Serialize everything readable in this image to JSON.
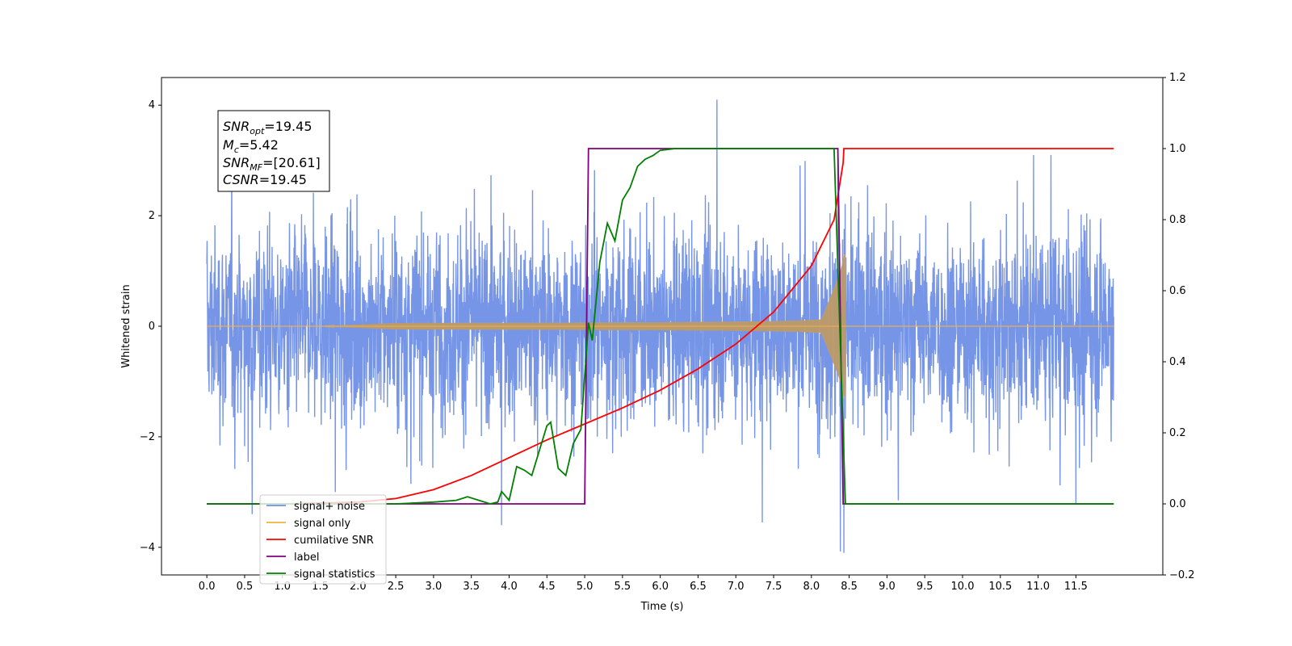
{
  "chart_data": {
    "type": "line",
    "title": "",
    "xlabel": "Time (s)",
    "ylabel": "Whitened strain",
    "xlim": [
      -0.6,
      12.65
    ],
    "ylim": [
      -4.5,
      4.5
    ],
    "y2lim": [
      -0.2,
      1.2
    ],
    "grid": false,
    "legend_position": "lower-left",
    "x_ticks": [
      "0.0",
      "0.5",
      "1.0",
      "1.5",
      "2.0",
      "2.5",
      "3.0",
      "3.5",
      "4.0",
      "4.5",
      "5.0",
      "5.5",
      "6.0",
      "6.5",
      "7.0",
      "7.5",
      "8.0",
      "8.5",
      "9.0",
      "9.5",
      "10.0",
      "10.5",
      "11.0",
      "11.5"
    ],
    "y_ticks": [
      "−4",
      "−2",
      "0",
      "2",
      "4"
    ],
    "y2_ticks": [
      "−0.2",
      "0.0",
      "0.2",
      "0.4",
      "0.6",
      "0.8",
      "1.0",
      "1.2"
    ],
    "annotation": {
      "snr_opt": {
        "symbol": "SNR",
        "sub": "opt",
        "value": "=19.45"
      },
      "mc": {
        "symbol": "M",
        "sub": "c",
        "value": "=5.42"
      },
      "snr_mf": {
        "symbol": "SNR",
        "sub": "MF",
        "value": "=[20.61]"
      },
      "csnr": {
        "symbol": "CSNR",
        "sub": "",
        "value": "=19.45"
      }
    },
    "series": [
      {
        "name": "signal+ noise",
        "axis": "left",
        "color": "#6f8fe6",
        "kind": "noise",
        "x_range": [
          0,
          12
        ],
        "noise_std": 0.85,
        "spike_times": [
          0.6,
          1.7,
          3.9,
          6.75,
          7.35,
          8.43,
          9.15,
          11.5
        ],
        "spike_values": [
          -3.4,
          -3.0,
          -3.6,
          4.1,
          -3.55,
          -4.1,
          -3.15,
          -3.2
        ]
      },
      {
        "name": "signal only",
        "axis": "left",
        "color": "#f5b041",
        "kind": "chirp",
        "start": 2.5,
        "merger": 8.43,
        "peak_amplitude": 1.3
      },
      {
        "name": "cumilative SNR",
        "axis": "right",
        "color": "#ff0000",
        "x": [
          0.0,
          1.0,
          2.0,
          2.5,
          3.0,
          3.5,
          4.0,
          4.5,
          5.0,
          5.5,
          6.0,
          6.5,
          7.0,
          7.5,
          8.0,
          8.3,
          8.42,
          8.43,
          12.0
        ],
        "y": [
          0.0,
          0.0,
          0.005,
          0.015,
          0.04,
          0.08,
          0.13,
          0.18,
          0.225,
          0.27,
          0.32,
          0.38,
          0.45,
          0.54,
          0.67,
          0.8,
          0.96,
          1.0,
          1.0
        ]
      },
      {
        "name": "label",
        "axis": "right",
        "color": "#800080",
        "x": [
          0.0,
          5.0,
          5.05,
          8.35,
          8.42,
          12.0
        ],
        "y": [
          0.0,
          0.0,
          1.0,
          1.0,
          0.0,
          0.0
        ]
      },
      {
        "name": "signal statistics",
        "axis": "right",
        "color": "#008000",
        "x": [
          0.0,
          2.5,
          3.0,
          3.3,
          3.45,
          3.6,
          3.75,
          3.85,
          3.9,
          4.0,
          4.1,
          4.2,
          4.3,
          4.4,
          4.5,
          4.55,
          4.65,
          4.75,
          4.85,
          4.95,
          5.05,
          5.1,
          5.15,
          5.2,
          5.3,
          5.4,
          5.5,
          5.6,
          5.7,
          5.8,
          5.9,
          6.0,
          6.2,
          6.5,
          8.3,
          8.45,
          12.0
        ],
        "y": [
          0.0,
          0.0,
          0.005,
          0.01,
          0.02,
          0.01,
          0.0,
          0.005,
          0.035,
          0.01,
          0.105,
          0.095,
          0.08,
          0.15,
          0.22,
          0.23,
          0.1,
          0.08,
          0.17,
          0.21,
          0.51,
          0.46,
          0.57,
          0.68,
          0.79,
          0.74,
          0.855,
          0.89,
          0.95,
          0.97,
          0.98,
          0.995,
          1.0,
          1.0,
          1.0,
          0.0,
          0.0
        ]
      }
    ]
  }
}
